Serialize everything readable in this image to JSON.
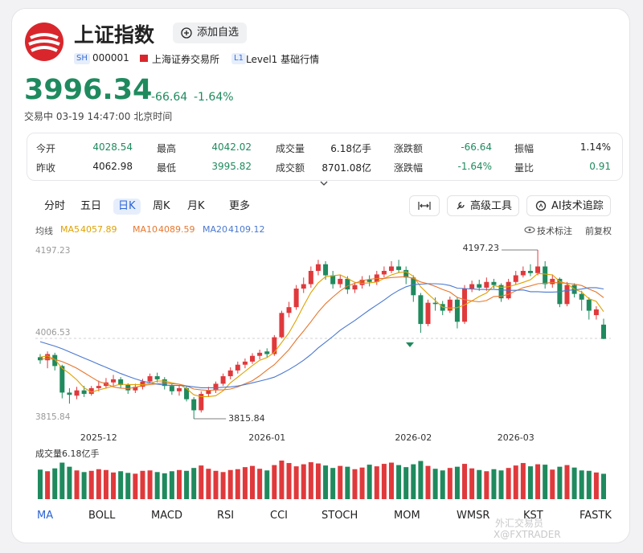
{
  "header": {
    "title": "上证指数",
    "watchlist_button": "添加自选",
    "market": "SH",
    "code": "000001",
    "exchange": "上海证券交易所",
    "level_badge": "L1",
    "level": "Level1 基础行情"
  },
  "quote": {
    "price": "3996.34",
    "change": "-66.64",
    "change_pct": "-1.64%",
    "status": "交易中 03-19 14:47:00 北京时间",
    "color": "#1f8a5e"
  },
  "stats": [
    [
      {
        "label": "今开",
        "value": "4028.54",
        "color": "#1f8a5e"
      },
      {
        "label": "最高",
        "value": "4042.02",
        "color": "#1f8a5e"
      },
      {
        "label": "成交量",
        "value": "6.18亿手",
        "color": "#222222"
      },
      {
        "label": "涨跌额",
        "value": "-66.64",
        "color": "#1f8a5e"
      },
      {
        "label": "振幅",
        "value": "1.14%",
        "color": "#222222"
      }
    ],
    [
      {
        "label": "昨收",
        "value": "4062.98",
        "color": "#222222"
      },
      {
        "label": "最低",
        "value": "3995.82",
        "color": "#1f8a5e"
      },
      {
        "label": "成交额",
        "value": "8701.08亿",
        "color": "#222222"
      },
      {
        "label": "涨跌幅",
        "value": "-1.64%",
        "color": "#1f8a5e"
      },
      {
        "label": "量比",
        "value": "0.91",
        "color": "#1f8a5e"
      }
    ]
  ],
  "periods": {
    "items": [
      "分时",
      "五日",
      "日K",
      "周K",
      "月K",
      "更多"
    ],
    "active": 2
  },
  "tools": [
    "高级工具",
    "AI技术追踪"
  ],
  "ma_label": "均线",
  "chart_options": [
    "技术标注",
    "前复权"
  ],
  "indicators": {
    "items": [
      "MA",
      "BOLL",
      "MACD",
      "RSI",
      "CCI",
      "STOCH",
      "MOM",
      "WMSR",
      "KST",
      "FASTK"
    ],
    "active": 0
  },
  "watermark": [
    "外汇交易员",
    "X@FXTRADER"
  ],
  "chart_data": {
    "type": "candlestick",
    "up_color": "#e0393c",
    "down_color": "#1f8a5e",
    "grid": true,
    "ylim": [
      3815.84,
      4197.23
    ],
    "yticks": [
      4197.23,
      4006.53,
      3815.84
    ],
    "categories": [
      null,
      null,
      null,
      null,
      null,
      null,
      null,
      null,
      "2025-12",
      null,
      null,
      null,
      null,
      null,
      null,
      null,
      null,
      null,
      null,
      null,
      null,
      null,
      null,
      null,
      null,
      null,
      null,
      null,
      null,
      null,
      null,
      "2026-01",
      null,
      null,
      null,
      null,
      null,
      null,
      null,
      null,
      null,
      null,
      null,
      null,
      null,
      null,
      null,
      null,
      null,
      null,
      null,
      "2026-02",
      null,
      null,
      null,
      null,
      null,
      null,
      null,
      null,
      null,
      null,
      null,
      null,
      null,
      "2026-03",
      null,
      null,
      null,
      null,
      null,
      null,
      null,
      null,
      null,
      null,
      null,
      null
    ],
    "open": [
      3955,
      3948,
      3960,
      3935,
      3875,
      3868,
      3880,
      3872,
      3885,
      3890,
      3898,
      3905,
      3892,
      3880,
      3888,
      3900,
      3912,
      3905,
      3890,
      3878,
      3885,
      3860,
      3835,
      3872,
      3880,
      3895,
      3912,
      3925,
      3938,
      3945,
      3958,
      3968,
      3962,
      4000,
      4055,
      4068,
      4110,
      4120,
      4150,
      4165,
      4140,
      4120,
      4132,
      4108,
      4118,
      4130,
      4125,
      4142,
      4150,
      4160,
      4152,
      4135,
      4095,
      4030,
      4078,
      4075,
      4060,
      4085,
      4035,
      4110,
      4120,
      4112,
      4125,
      4118,
      4088,
      4125,
      4140,
      4150,
      4145,
      4160,
      4120,
      4132,
      4075,
      4118,
      4098,
      4085,
      4050,
      4028.54
    ],
    "high": [
      3962,
      3968,
      3965,
      3938,
      3885,
      3888,
      3890,
      3890,
      3902,
      3908,
      3915,
      3910,
      3896,
      3895,
      3906,
      3918,
      3920,
      3910,
      3895,
      3892,
      3890,
      3865,
      3878,
      3888,
      3900,
      3918,
      3932,
      3945,
      3952,
      3964,
      3972,
      3975,
      4005,
      4060,
      4080,
      4118,
      4135,
      4160,
      4175,
      4172,
      4150,
      4140,
      4138,
      4125,
      4138,
      4140,
      4150,
      4160,
      4172,
      4175,
      4160,
      4140,
      4100,
      4085,
      4090,
      4082,
      4092,
      4090,
      4118,
      4128,
      4130,
      4135,
      4132,
      4122,
      4132,
      4150,
      4160,
      4165,
      4197.23,
      4172,
      4142,
      4135,
      4125,
      4122,
      4105,
      4090,
      4070,
      4042.02
    ],
    "low": [
      3940,
      3930,
      3925,
      3862,
      3850,
      3860,
      3865,
      3868,
      3878,
      3884,
      3890,
      3885,
      3872,
      3874,
      3882,
      3895,
      3898,
      3882,
      3870,
      3868,
      3855,
      3815.84,
      3830,
      3865,
      3874,
      3890,
      3905,
      3918,
      3930,
      3940,
      3950,
      3955,
      3958,
      3998,
      4045,
      4062,
      4100,
      4112,
      4140,
      4130,
      4110,
      4112,
      4098,
      4100,
      4110,
      4115,
      4118,
      4135,
      4145,
      4145,
      4120,
      4080,
      4010,
      4025,
      4060,
      4050,
      4055,
      4020,
      4030,
      4102,
      4105,
      4105,
      4110,
      4080,
      4085,
      4118,
      4135,
      4138,
      4140,
      4110,
      4112,
      4068,
      4070,
      4090,
      4060,
      4040,
      4040,
      3995.82
    ],
    "close": [
      3948,
      3962,
      3935,
      3875,
      3870,
      3880,
      3872,
      3885,
      3890,
      3898,
      3905,
      3892,
      3880,
      3888,
      3900,
      3912,
      3905,
      3890,
      3878,
      3885,
      3860,
      3835,
      3872,
      3880,
      3895,
      3912,
      3925,
      3938,
      3945,
      3958,
      3965,
      3962,
      4000,
      4055,
      4068,
      4110,
      4120,
      4150,
      4165,
      4140,
      4120,
      4132,
      4108,
      4118,
      4130,
      4125,
      4142,
      4150,
      4160,
      4152,
      4135,
      4095,
      4030,
      4078,
      4075,
      4060,
      4085,
      4035,
      4110,
      4120,
      4112,
      4125,
      4118,
      4088,
      4125,
      4140,
      4150,
      4145,
      4160,
      4120,
      4132,
      4075,
      4118,
      4098,
      4085,
      4060,
      4062.98,
      3996.34
    ],
    "series": [
      {
        "name": "MA5",
        "color": "#e0a100",
        "values": [
          3955,
          3958,
          3950,
          3930,
          3918,
          3904,
          3886,
          3876,
          3881,
          3885,
          3890,
          3894,
          3893,
          3893,
          3893,
          3896,
          3901,
          3901,
          3897,
          3894,
          3884,
          3870,
          3866,
          3866,
          3868,
          3879,
          3897,
          3910,
          3923,
          3936,
          3948,
          3954,
          3966,
          3988,
          4010,
          4039,
          4071,
          4101,
          4123,
          4137,
          4139,
          4141,
          4133,
          4124,
          4122,
          4123,
          4125,
          4133,
          4141,
          4146,
          4148,
          4138,
          4114,
          4098,
          4083,
          4068,
          4066,
          4067,
          4073,
          4082,
          4092,
          4100,
          4117,
          4113,
          4114,
          4119,
          4124,
          4130,
          4144,
          4143,
          4141,
          4126,
          4121,
          4109,
          4102,
          4087,
          4081,
          4057.89
        ]
      },
      {
        "name": "MA10",
        "color": "#e8772e",
        "values": [
          3950,
          3952,
          3950,
          3945,
          3938,
          3930,
          3920,
          3910,
          3900,
          3895,
          3888,
          3885,
          3884,
          3887,
          3891,
          3893,
          3895,
          3897,
          3895,
          3894,
          3890,
          3883,
          3881,
          3880,
          3881,
          3881,
          3883,
          3888,
          3895,
          3902,
          3913,
          3926,
          3938,
          3955,
          3972,
          3994,
          4014,
          4035,
          4057,
          4076,
          4091,
          4105,
          4116,
          4122,
          4128,
          4131,
          4133,
          4133,
          4135,
          4136,
          4137,
          4133,
          4125,
          4121,
          4115,
          4108,
          4102,
          4090,
          4085,
          4082,
          4080,
          4083,
          4092,
          4093,
          4097,
          4105,
          4112,
          4116,
          4121,
          4122,
          4124,
          4123,
          4122,
          4120,
          4117,
          4109,
          4102,
          4089.59
        ]
      },
      {
        "name": "MA20",
        "color": "#4a78d0",
        "values": [
          3990,
          3985,
          3980,
          3974,
          3967,
          3960,
          3953,
          3946,
          3939,
          3932,
          3925,
          3918,
          3912,
          3906,
          3901,
          3897,
          3894,
          3892,
          3891,
          3891,
          3890,
          3888,
          3886,
          3886,
          3886,
          3887,
          3888,
          3890,
          3893,
          3897,
          3901,
          3905,
          3910,
          3918,
          3927,
          3937,
          3948,
          3961,
          3976,
          3989,
          4002,
          4016,
          4027,
          4038,
          4050,
          4062,
          4073,
          4084,
          4096,
          4106,
          4114,
          4119,
          4120,
          4121,
          4121,
          4120,
          4117,
          4111,
          4110,
          4109,
          4108,
          4108,
          4108,
          4107,
          4106,
          4106,
          4107,
          4103,
          4103,
          4102,
          4102,
          4103,
          4106,
          4107,
          4109,
          4112,
          4112,
          4109.12
        ]
      }
    ],
    "volume": {
      "label": "成交量6.18亿手",
      "values": [
        7.2,
        6.8,
        7.5,
        8.9,
        7.9,
        7.0,
        6.6,
        6.9,
        7.3,
        7.1,
        6.5,
        6.8,
        6.4,
        6.2,
        6.9,
        7.0,
        6.6,
        6.3,
        6.8,
        7.1,
        6.9,
        7.6,
        8.2,
        7.4,
        6.9,
        6.6,
        7.1,
        7.3,
        7.8,
        8.1,
        7.4,
        7.0,
        8.3,
        9.4,
        8.8,
        8.0,
        8.5,
        9.0,
        8.7,
        8.2,
        7.6,
        8.1,
        7.9,
        7.3,
        7.7,
        8.4,
        8.0,
        8.6,
        8.9,
        8.3,
        7.8,
        8.5,
        9.3,
        8.1,
        7.4,
        7.0,
        7.6,
        7.9,
        8.6,
        7.5,
        7.1,
        6.8,
        7.3,
        7.0,
        7.6,
        8.2,
        8.8,
        8.0,
        8.5,
        8.4,
        7.2,
        7.9,
        8.3,
        7.7,
        7.0,
        6.9,
        6.5,
        6.18
      ]
    }
  }
}
